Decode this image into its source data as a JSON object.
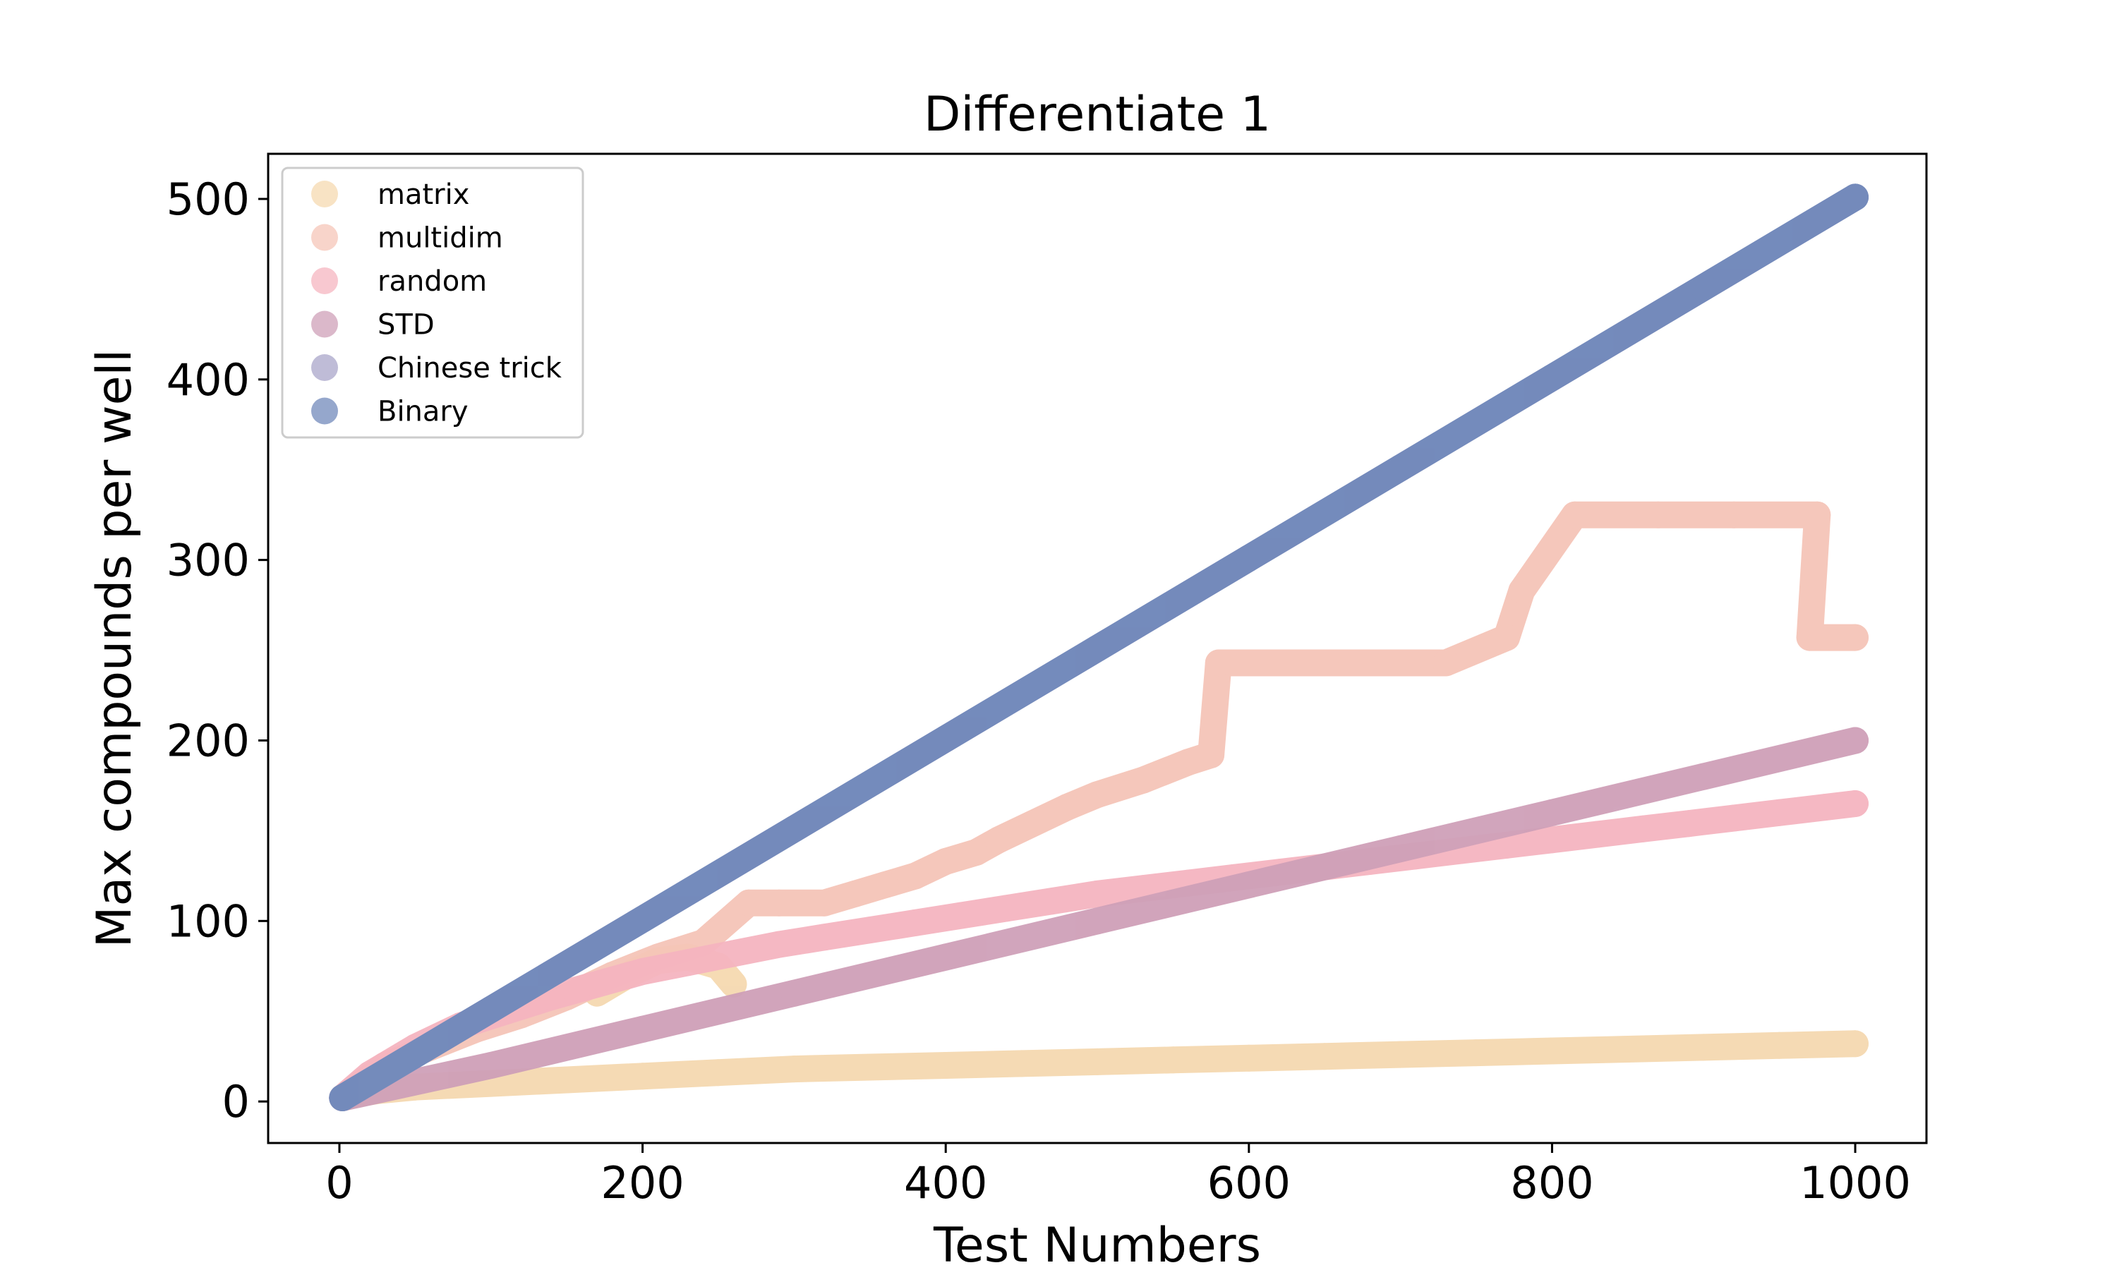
{
  "chart_data": {
    "type": "scatter",
    "title": "Differentiate 1",
    "xlabel": "Test Numbers",
    "ylabel": "Max compounds per well",
    "xlim": [
      -47,
      1047
    ],
    "ylim": [
      -23,
      525
    ],
    "xticks": [
      0,
      200,
      400,
      600,
      800,
      1000
    ],
    "yticks": [
      0,
      100,
      200,
      300,
      400,
      500
    ],
    "grid": false,
    "legend_position": "upper-left",
    "series": [
      {
        "name": "matrix",
        "color": "#f5d9b0",
        "points": [
          [
            2,
            2
          ],
          [
            10,
            4
          ],
          [
            25,
            6
          ],
          [
            50,
            8
          ],
          [
            75,
            9
          ],
          [
            100,
            10
          ],
          [
            150,
            12
          ],
          [
            200,
            14
          ],
          [
            250,
            16
          ],
          [
            300,
            18
          ],
          [
            350,
            19
          ],
          [
            400,
            20
          ],
          [
            450,
            21
          ],
          [
            500,
            22
          ],
          [
            550,
            23
          ],
          [
            600,
            24
          ],
          [
            650,
            25
          ],
          [
            700,
            26
          ],
          [
            750,
            27
          ],
          [
            800,
            28
          ],
          [
            850,
            29
          ],
          [
            900,
            30
          ],
          [
            950,
            31
          ],
          [
            1000,
            32
          ]
        ],
        "extra_points": [
          [
            170,
            60
          ],
          [
            190,
            70
          ],
          [
            210,
            78
          ],
          [
            230,
            80
          ],
          [
            250,
            75
          ],
          [
            260,
            65
          ]
        ]
      },
      {
        "name": "multidim",
        "color": "#f5c5b8",
        "points": [
          [
            2,
            2
          ],
          [
            30,
            20
          ],
          [
            60,
            30
          ],
          [
            90,
            40
          ],
          [
            120,
            48
          ],
          [
            150,
            58
          ],
          [
            180,
            70
          ],
          [
            210,
            80
          ],
          [
            240,
            88
          ],
          [
            270,
            110
          ],
          [
            290,
            110
          ],
          [
            320,
            110
          ],
          [
            340,
            115
          ],
          [
            360,
            120
          ],
          [
            380,
            125
          ],
          [
            400,
            133
          ],
          [
            420,
            138
          ],
          [
            435,
            145
          ],
          [
            480,
            163
          ],
          [
            500,
            170
          ],
          [
            530,
            178
          ],
          [
            560,
            188
          ],
          [
            575,
            192
          ],
          [
            580,
            243
          ],
          [
            650,
            243
          ],
          [
            730,
            243
          ],
          [
            770,
            257
          ],
          [
            780,
            283
          ],
          [
            815,
            325
          ],
          [
            870,
            325
          ],
          [
            920,
            325
          ],
          [
            975,
            325
          ],
          [
            970,
            257
          ],
          [
            1000,
            257
          ]
        ]
      },
      {
        "name": "random",
        "color": "#f5b5c0",
        "points": [
          [
            2,
            2
          ],
          [
            20,
            15
          ],
          [
            50,
            30
          ],
          [
            80,
            42
          ],
          [
            110,
            50
          ],
          [
            140,
            58
          ],
          [
            170,
            65
          ],
          [
            200,
            72
          ],
          [
            230,
            77
          ],
          [
            260,
            82
          ],
          [
            290,
            87
          ],
          [
            320,
            91
          ],
          [
            350,
            95
          ],
          [
            380,
            99
          ],
          [
            410,
            103
          ],
          [
            440,
            107
          ],
          [
            470,
            111
          ],
          [
            500,
            115
          ],
          [
            530,
            118
          ],
          [
            560,
            121
          ],
          [
            590,
            124
          ],
          [
            620,
            127
          ],
          [
            650,
            130
          ],
          [
            680,
            133
          ],
          [
            710,
            136
          ],
          [
            740,
            139
          ],
          [
            770,
            142
          ],
          [
            800,
            145
          ],
          [
            830,
            148
          ],
          [
            860,
            151
          ],
          [
            890,
            154
          ],
          [
            920,
            157
          ],
          [
            950,
            160
          ],
          [
            980,
            163
          ],
          [
            1000,
            165
          ]
        ]
      },
      {
        "name": "STD",
        "color": "#cfa0b8",
        "points": [
          [
            2,
            2
          ],
          [
            100,
            20
          ],
          [
            200,
            40
          ],
          [
            300,
            60
          ],
          [
            400,
            80
          ],
          [
            500,
            100
          ],
          [
            600,
            120
          ],
          [
            700,
            140
          ],
          [
            800,
            160
          ],
          [
            900,
            180
          ],
          [
            1000,
            200
          ]
        ]
      },
      {
        "name": "Chinese trick",
        "color": "#a9a6c9",
        "points": [
          [
            2,
            2
          ],
          [
            500,
            251
          ],
          [
            1000,
            501
          ]
        ]
      },
      {
        "name": "Binary",
        "color": "#7189bb",
        "points": [
          [
            2,
            2
          ],
          [
            100,
            51
          ],
          [
            200,
            101
          ],
          [
            300,
            151
          ],
          [
            400,
            201
          ],
          [
            500,
            251
          ],
          [
            600,
            301
          ],
          [
            700,
            351
          ],
          [
            800,
            401
          ],
          [
            900,
            451
          ],
          [
            1000,
            501
          ]
        ]
      }
    ]
  }
}
